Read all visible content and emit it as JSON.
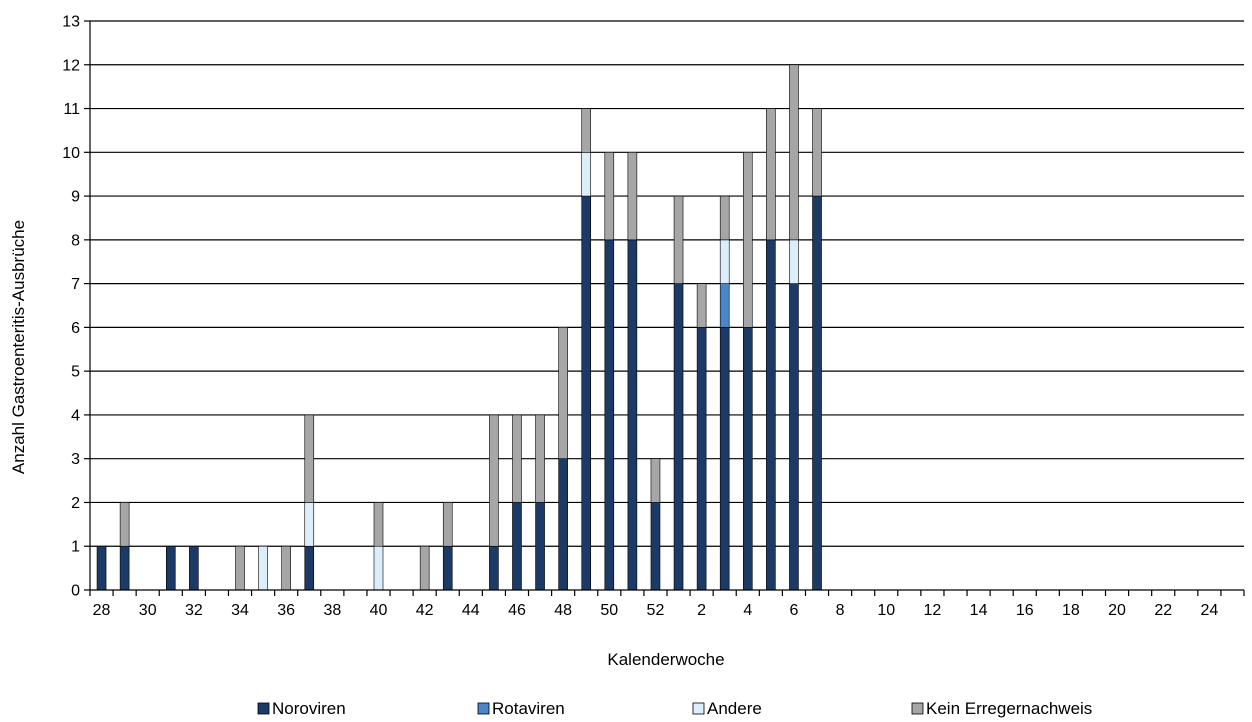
{
  "chart_data": {
    "type": "bar",
    "stacked": true,
    "title": "",
    "xlabel": "Kalenderwoche",
    "ylabel": "Anzahl Gastroenteritis-Ausbrüche",
    "ylim": [
      0,
      13
    ],
    "yticks": [
      0,
      1,
      2,
      3,
      4,
      5,
      6,
      7,
      8,
      9,
      10,
      11,
      12,
      13
    ],
    "grid": "horizontal",
    "legend_position": "bottom",
    "categories": [
      "28",
      "29",
      "30",
      "31",
      "32",
      "33",
      "34",
      "35",
      "36",
      "37",
      "38",
      "39",
      "40",
      "41",
      "42",
      "43",
      "44",
      "45",
      "46",
      "47",
      "48",
      "49",
      "50",
      "51",
      "52",
      "1",
      "2",
      "3",
      "4",
      "5",
      "6",
      "7",
      "8",
      "9",
      "10",
      "11",
      "12",
      "13",
      "14",
      "15",
      "16",
      "17",
      "18",
      "19",
      "20",
      "21",
      "22",
      "23",
      "24",
      "25"
    ],
    "x_tick_labels": [
      "28",
      "30",
      "32",
      "34",
      "36",
      "38",
      "40",
      "42",
      "44",
      "46",
      "48",
      "50",
      "52",
      "2",
      "4",
      "6",
      "8",
      "10",
      "12",
      "14",
      "16",
      "18",
      "20",
      "22",
      "24"
    ],
    "series": [
      {
        "name": "Noroviren",
        "color": "#1b3a66",
        "values": [
          1,
          1,
          0,
          1,
          1,
          0,
          0,
          0,
          0,
          1,
          0,
          0,
          0,
          0,
          0,
          1,
          0,
          1,
          2,
          2,
          3,
          9,
          8,
          8,
          2,
          7,
          6,
          6,
          6,
          8,
          7,
          9,
          0,
          0,
          0,
          0,
          0,
          0,
          0,
          0,
          0,
          0,
          0,
          0,
          0,
          0,
          0,
          0,
          0,
          0
        ]
      },
      {
        "name": "Rotaviren",
        "color": "#4a86c8",
        "values": [
          0,
          0,
          0,
          0,
          0,
          0,
          0,
          0,
          0,
          0,
          0,
          0,
          0,
          0,
          0,
          0,
          0,
          0,
          0,
          0,
          0,
          0,
          0,
          0,
          0,
          0,
          0,
          1,
          0,
          0,
          0,
          0,
          0,
          0,
          0,
          0,
          0,
          0,
          0,
          0,
          0,
          0,
          0,
          0,
          0,
          0,
          0,
          0,
          0,
          0
        ]
      },
      {
        "name": "Andere",
        "color": "#ddeefb",
        "values": [
          0,
          0,
          0,
          0,
          0,
          0,
          0,
          1,
          0,
          1,
          0,
          0,
          1,
          0,
          0,
          0,
          0,
          0,
          0,
          0,
          0,
          1,
          0,
          0,
          0,
          0,
          0,
          1,
          0,
          0,
          1,
          0,
          0,
          0,
          0,
          0,
          0,
          0,
          0,
          0,
          0,
          0,
          0,
          0,
          0,
          0,
          0,
          0,
          0,
          0
        ]
      },
      {
        "name": "Kein Erregernachweis",
        "color": "#a6a6a6",
        "values": [
          0,
          1,
          0,
          0,
          0,
          0,
          1,
          0,
          1,
          2,
          0,
          0,
          1,
          0,
          1,
          1,
          0,
          3,
          2,
          2,
          3,
          1,
          2,
          2,
          1,
          2,
          1,
          1,
          4,
          3,
          4,
          2,
          0,
          0,
          0,
          0,
          0,
          0,
          0,
          0,
          0,
          0,
          0,
          0,
          0,
          0,
          0,
          0,
          0,
          0
        ]
      }
    ]
  }
}
